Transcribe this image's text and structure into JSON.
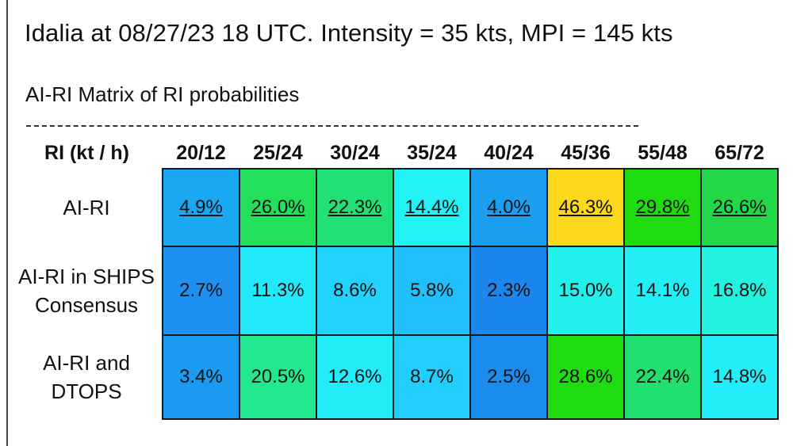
{
  "title": "Idalia at 08/27/23 18 UTC. Intensity = 35 kts, MPI = 145 kts",
  "subtitle": "AI-RI Matrix of RI probabilities",
  "divider": "--------------------------------------------------------------------------------------------",
  "table": {
    "corner_label": "RI (kt / h)",
    "columns": [
      "20/12",
      "25/24",
      "30/24",
      "35/24",
      "40/24",
      "45/36",
      "55/48",
      "65/72"
    ],
    "rows": [
      {
        "label": "AI-RI",
        "underlined": true,
        "values": [
          "4.9%",
          "26.0%",
          "22.3%",
          "14.4%",
          "4.0%",
          "46.3%",
          "29.8%",
          "26.6%"
        ],
        "colors": [
          "#1aa8f2",
          "#22e05a",
          "#22e078",
          "#22f2f6",
          "#1a9ef0",
          "#fcd71c",
          "#1edc10",
          "#22d848"
        ]
      },
      {
        "label": "AI-RI in SHIPS Consensus",
        "underlined": false,
        "values": [
          "2.7%",
          "11.3%",
          "8.6%",
          "5.8%",
          "2.3%",
          "15.0%",
          "14.1%",
          "16.8%"
        ],
        "colors": [
          "#1e90f2",
          "#22e8fc",
          "#20d2fc",
          "#20c0fc",
          "#1a86ee",
          "#22f0ec",
          "#22eef6",
          "#22f2e0"
        ]
      },
      {
        "label": "AI-RI and DTOPS",
        "underlined": false,
        "values": [
          "3.4%",
          "20.5%",
          "12.6%",
          "8.7%",
          "2.5%",
          "28.6%",
          "22.4%",
          "14.8%"
        ],
        "colors": [
          "#1a9af0",
          "#22e890",
          "#22ecf8",
          "#22cefc",
          "#1a8cee",
          "#1edc10",
          "#22e070",
          "#22eefa"
        ]
      }
    ]
  }
}
